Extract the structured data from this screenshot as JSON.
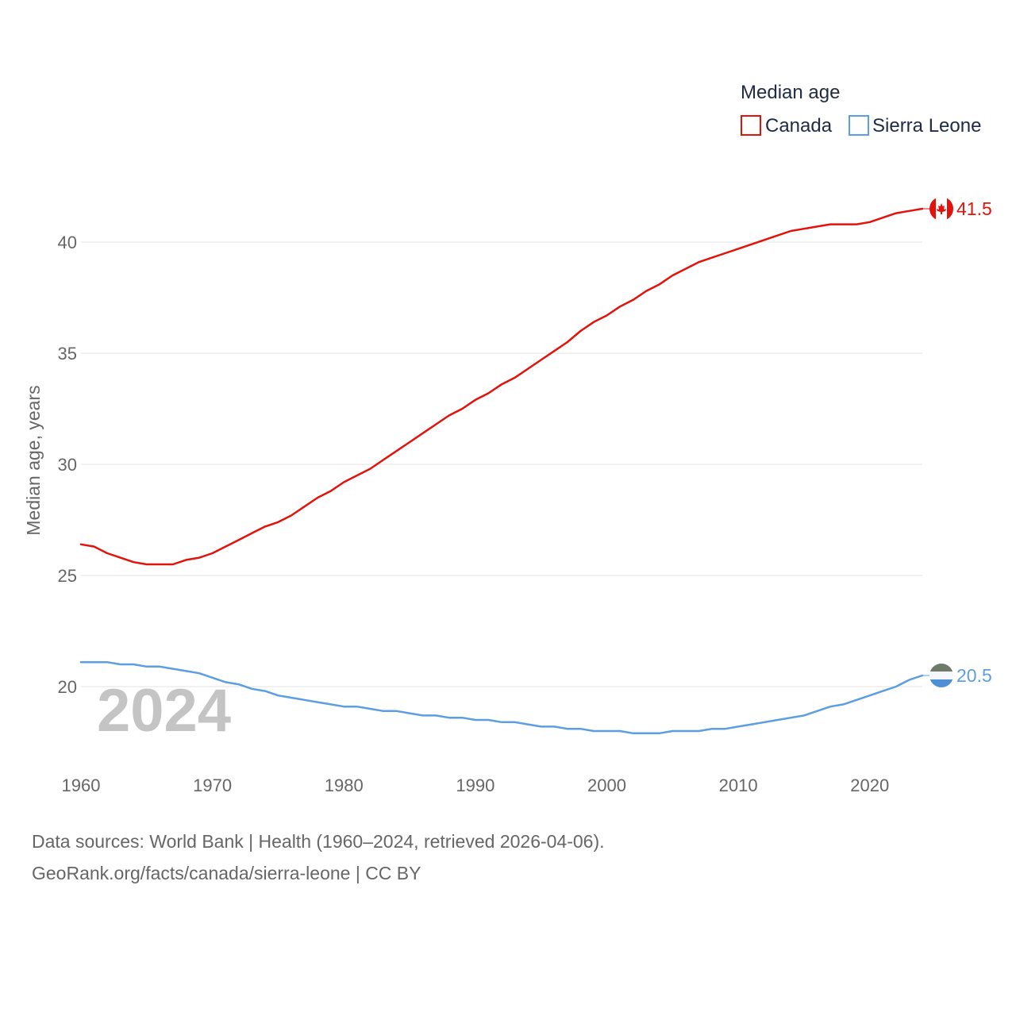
{
  "chart_data": {
    "type": "line",
    "title": "Median age",
    "ylabel": "Median age, years",
    "xlabel": "",
    "xlim": [
      1960,
      2024
    ],
    "ylim": [
      16.5,
      43.5
    ],
    "x_ticks": [
      1960,
      1970,
      1980,
      1990,
      2000,
      2010,
      2020
    ],
    "y_ticks": [
      20,
      25,
      30,
      35,
      40
    ],
    "grid": true,
    "legend_position": "top-right",
    "current_year": "2024",
    "x": [
      1960,
      1961,
      1962,
      1963,
      1964,
      1965,
      1966,
      1967,
      1968,
      1969,
      1970,
      1971,
      1972,
      1973,
      1974,
      1975,
      1976,
      1977,
      1978,
      1979,
      1980,
      1981,
      1982,
      1983,
      1984,
      1985,
      1986,
      1987,
      1988,
      1989,
      1990,
      1991,
      1992,
      1993,
      1994,
      1995,
      1996,
      1997,
      1998,
      1999,
      2000,
      2001,
      2002,
      2003,
      2004,
      2005,
      2006,
      2007,
      2008,
      2009,
      2010,
      2011,
      2012,
      2013,
      2014,
      2015,
      2016,
      2017,
      2018,
      2019,
      2020,
      2021,
      2022,
      2023,
      2024
    ],
    "series": [
      {
        "name": "Canada",
        "color": "#e3120b",
        "end_label": "41.5",
        "flag": "canada-flag",
        "values": [
          26.4,
          26.3,
          26.0,
          25.8,
          25.6,
          25.5,
          25.5,
          25.5,
          25.7,
          25.8,
          26.0,
          26.3,
          26.6,
          26.9,
          27.2,
          27.4,
          27.7,
          28.1,
          28.5,
          28.8,
          29.2,
          29.5,
          29.8,
          30.2,
          30.6,
          31.0,
          31.4,
          31.8,
          32.2,
          32.5,
          32.9,
          33.2,
          33.6,
          33.9,
          34.3,
          34.7,
          35.1,
          35.5,
          36.0,
          36.4,
          36.7,
          37.1,
          37.4,
          37.8,
          38.1,
          38.5,
          38.8,
          39.1,
          39.3,
          39.5,
          39.7,
          39.9,
          40.1,
          40.3,
          40.5,
          40.6,
          40.7,
          40.8,
          40.8,
          40.8,
          40.9,
          41.1,
          41.3,
          41.4,
          41.5
        ]
      },
      {
        "name": "Sierra Leone",
        "color": "#5b9ee1",
        "end_label": "20.5",
        "flag": "sierra-leone-flag",
        "values": [
          21.1,
          21.1,
          21.1,
          21.0,
          21.0,
          20.9,
          20.9,
          20.8,
          20.7,
          20.6,
          20.4,
          20.2,
          20.1,
          19.9,
          19.8,
          19.6,
          19.5,
          19.4,
          19.3,
          19.2,
          19.1,
          19.1,
          19.0,
          18.9,
          18.9,
          18.8,
          18.7,
          18.7,
          18.6,
          18.6,
          18.5,
          18.5,
          18.4,
          18.4,
          18.3,
          18.2,
          18.2,
          18.1,
          18.1,
          18.0,
          18.0,
          18.0,
          17.9,
          17.9,
          17.9,
          18.0,
          18.0,
          18.0,
          18.1,
          18.1,
          18.2,
          18.3,
          18.4,
          18.5,
          18.6,
          18.7,
          18.9,
          19.1,
          19.2,
          19.4,
          19.6,
          19.8,
          20.0,
          20.3,
          20.5
        ]
      }
    ]
  },
  "source": {
    "line1": "Data sources: World Bank | Health (1960–2024, retrieved 2026-04-06).",
    "line2": "GeoRank.org/facts/canada/sierra-leone | CC BY"
  }
}
